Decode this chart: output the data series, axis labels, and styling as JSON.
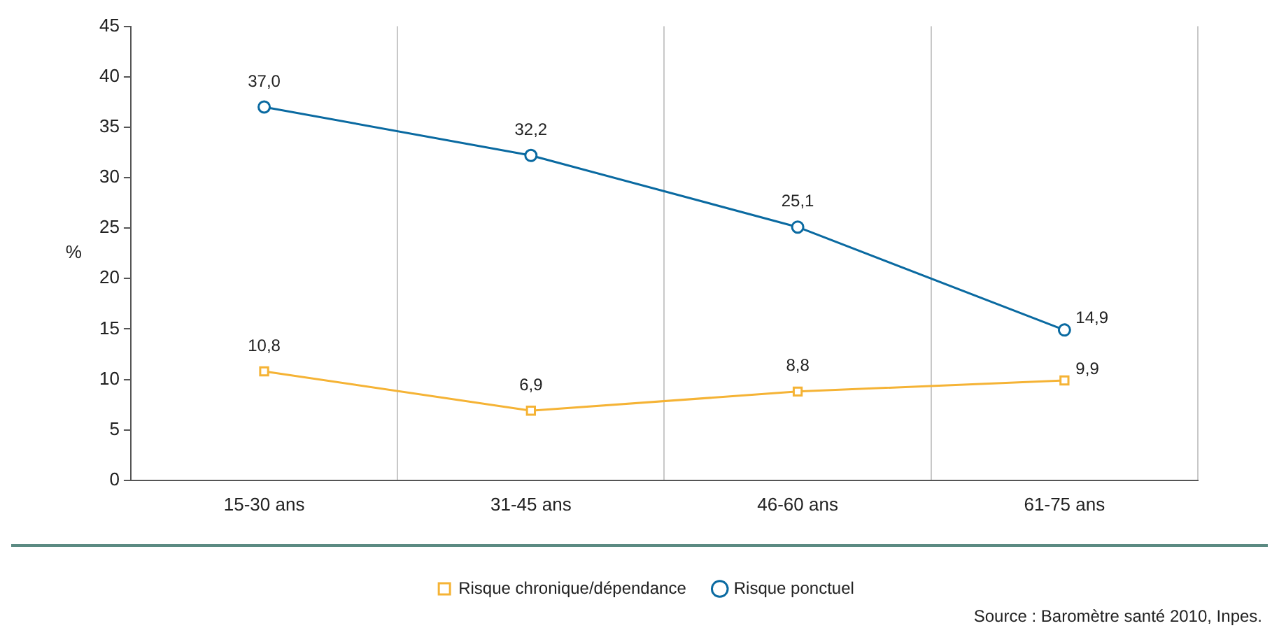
{
  "chart_data": {
    "type": "line",
    "ylabel": "%",
    "categories": [
      "15-30 ans",
      "31-45 ans",
      "46-60 ans",
      "61-75 ans"
    ],
    "series": [
      {
        "name": "Risque chronique/dépendance",
        "color": "#f5b335",
        "marker": "square",
        "values": [
          10.8,
          6.9,
          8.8,
          9.9
        ],
        "value_labels": [
          "10,8",
          "6,9",
          "8,8",
          "9,9"
        ]
      },
      {
        "name": "Risque ponctuel",
        "color": "#0a6aa1",
        "marker": "circle",
        "values": [
          37.0,
          32.2,
          25.1,
          14.9
        ],
        "value_labels": [
          "37,0",
          "32,2",
          "25,1",
          "14,9"
        ]
      }
    ],
    "ylim": [
      0,
      45
    ],
    "yticks": [
      0,
      5,
      10,
      15,
      20,
      25,
      30,
      35,
      40,
      45
    ],
    "grid": "x",
    "legend": "bottom",
    "line_style": "solid",
    "annotations": [
      "Source : Baromètre santé 2010, Inpes."
    ]
  }
}
